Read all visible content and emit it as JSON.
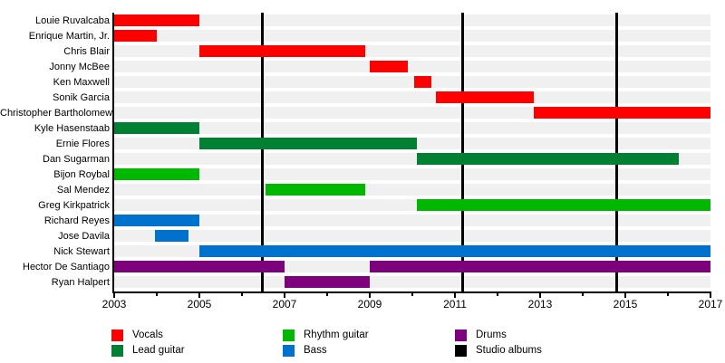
{
  "chart_data": {
    "type": "bar",
    "subtype": "gantt-band-member-timeline",
    "title": "",
    "x_axis": {
      "min": 2003,
      "max": 2017,
      "tick_step_years": 1,
      "label_step_years": 2,
      "tick_labels": [
        "2003",
        "2005",
        "2007",
        "2009",
        "2011",
        "2013",
        "2015",
        "2017"
      ]
    },
    "grid": "alternating-gray-row-bands",
    "legend_position": "bottom",
    "legend": [
      {
        "label": "Vocals",
        "color": "#fe0000"
      },
      {
        "label": "Lead guitar",
        "color": "#008033"
      },
      {
        "label": "Rhythm guitar",
        "color": "#00b800"
      },
      {
        "label": "Bass",
        "color": "#0072cd"
      },
      {
        "label": "Drums",
        "color": "#7d007d"
      },
      {
        "label": "Studio albums",
        "color": "#000000"
      }
    ],
    "role_colors": {
      "Vocals": "#fe0000",
      "Lead guitar": "#008033",
      "Rhythm guitar": "#00b800",
      "Bass": "#0072cd",
      "Drums": "#7d007d"
    },
    "members": [
      {
        "name": "Louie Ruvalcaba",
        "role": "Vocals",
        "periods": [
          [
            2003.0,
            2005.0
          ]
        ]
      },
      {
        "name": "Enrique Martin, Jr.",
        "role": "Vocals",
        "periods": [
          [
            2003.0,
            2004.0
          ]
        ]
      },
      {
        "name": "Chris Blair",
        "role": "Vocals",
        "periods": [
          [
            2005.0,
            2008.9
          ]
        ]
      },
      {
        "name": "Jonny McBee",
        "role": "Vocals",
        "periods": [
          [
            2009.0,
            2009.9
          ]
        ]
      },
      {
        "name": "Ken Maxwell",
        "role": "Vocals",
        "periods": [
          [
            2010.05,
            2010.45
          ]
        ]
      },
      {
        "name": "Sonik Garcia",
        "role": "Vocals",
        "periods": [
          [
            2010.55,
            2012.85
          ]
        ]
      },
      {
        "name": "Christopher Bartholomew",
        "role": "Vocals",
        "periods": [
          [
            2012.85,
            2017.0
          ]
        ]
      },
      {
        "name": "Kyle Hasenstaab",
        "role": "Lead guitar",
        "periods": [
          [
            2003.0,
            2005.0
          ]
        ]
      },
      {
        "name": "Ernie Flores",
        "role": "Lead guitar",
        "periods": [
          [
            2005.0,
            2010.1
          ]
        ]
      },
      {
        "name": "Dan Sugarman",
        "role": "Lead guitar",
        "periods": [
          [
            2010.1,
            2016.25
          ]
        ]
      },
      {
        "name": "Bijon Roybal",
        "role": "Rhythm guitar",
        "periods": [
          [
            2003.0,
            2005.0
          ]
        ]
      },
      {
        "name": "Sal Mendez",
        "role": "Rhythm guitar",
        "periods": [
          [
            2006.55,
            2008.9
          ]
        ]
      },
      {
        "name": "Greg Kirkpatrick",
        "role": "Rhythm guitar",
        "periods": [
          [
            2010.1,
            2017.0
          ]
        ]
      },
      {
        "name": "Richard Reyes",
        "role": "Bass",
        "periods": [
          [
            2003.0,
            2005.0
          ]
        ]
      },
      {
        "name": "Jose Davila",
        "role": "Bass",
        "periods": [
          [
            2003.95,
            2004.75
          ]
        ]
      },
      {
        "name": "Nick Stewart",
        "role": "Bass",
        "periods": [
          [
            2005.0,
            2017.0
          ]
        ]
      },
      {
        "name": "Hector De Santiago",
        "role": "Drums",
        "periods": [
          [
            2003.0,
            2007.0
          ],
          [
            2009.0,
            2017.0
          ]
        ]
      },
      {
        "name": "Ryan Halpert",
        "role": "Drums",
        "periods": [
          [
            2007.0,
            2009.0
          ]
        ]
      }
    ],
    "studio_album_lines_year": [
      2006.47,
      2011.17,
      2014.8
    ]
  }
}
